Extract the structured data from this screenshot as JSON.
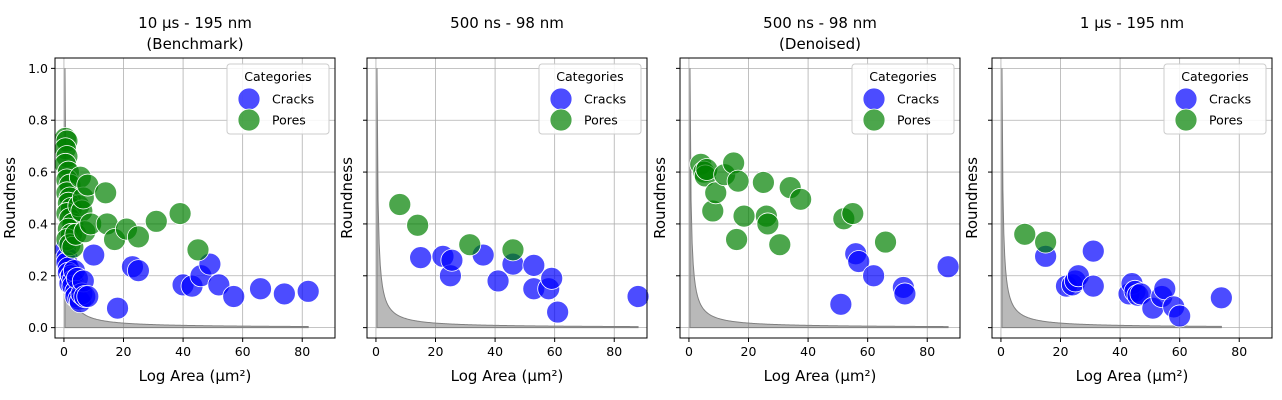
{
  "chart_data": [
    {
      "type": "scatter",
      "title": [
        "10 μs - 195 nm",
        "(Benchmark)"
      ],
      "xlabel": "Log Area (μm²)",
      "ylabel": "Roundness",
      "xlim": [
        -3,
        91
      ],
      "ylim": [
        -0.04,
        1.04
      ],
      "xticks": [
        0,
        20,
        40,
        60,
        80
      ],
      "yticks": [
        0.0,
        0.2,
        0.4,
        0.6,
        0.8,
        1.0
      ],
      "ytick_labels_visible": true,
      "grid": true,
      "legend": {
        "title": "Categories",
        "position": "top-right",
        "entries": [
          "Cracks",
          "Pores"
        ]
      },
      "curve_xmax": 82,
      "series": [
        {
          "name": "Cracks",
          "color": "#0000ff",
          "points": [
            [
              0.5,
              0.3
            ],
            [
              1,
              0.27
            ],
            [
              1,
              0.25
            ],
            [
              1.5,
              0.23
            ],
            [
              1.5,
              0.21
            ],
            [
              2,
              0.19
            ],
            [
              2,
              0.17
            ],
            [
              2.5,
              0.2
            ],
            [
              3,
              0.18
            ],
            [
              3,
              0.16
            ],
            [
              3.5,
              0.22
            ],
            [
              4,
              0.14
            ],
            [
              4,
              0.12
            ],
            [
              4.5,
              0.19
            ],
            [
              5,
              0.11
            ],
            [
              5.5,
              0.1
            ],
            [
              6,
              0.13
            ],
            [
              6.5,
              0.18
            ],
            [
              7,
              0.12
            ],
            [
              8,
              0.12
            ],
            [
              10,
              0.28
            ],
            [
              18,
              0.075
            ],
            [
              23,
              0.235
            ],
            [
              25,
              0.22
            ],
            [
              40,
              0.165
            ],
            [
              43,
              0.16
            ],
            [
              46,
              0.2
            ],
            [
              49,
              0.245
            ],
            [
              52,
              0.165
            ],
            [
              57,
              0.12
            ],
            [
              66,
              0.15
            ],
            [
              74,
              0.13
            ],
            [
              82,
              0.14
            ]
          ]
        },
        {
          "name": "Pores",
          "color": "#008000",
          "points": [
            [
              0.5,
              0.73
            ],
            [
              1,
              0.72
            ],
            [
              0.5,
              0.69
            ],
            [
              1,
              0.66
            ],
            [
              0.5,
              0.63
            ],
            [
              1.5,
              0.6
            ],
            [
              1,
              0.57
            ],
            [
              2,
              0.55
            ],
            [
              1,
              0.52
            ],
            [
              2,
              0.5
            ],
            [
              1.5,
              0.48
            ],
            [
              2.5,
              0.46
            ],
            [
              1,
              0.44
            ],
            [
              2,
              0.42
            ],
            [
              3,
              0.4
            ],
            [
              1.5,
              0.38
            ],
            [
              2.5,
              0.36
            ],
            [
              1,
              0.34
            ],
            [
              2,
              0.32
            ],
            [
              3,
              0.31
            ],
            [
              4,
              0.36
            ],
            [
              5,
              0.47
            ],
            [
              5.5,
              0.58
            ],
            [
              6,
              0.45
            ],
            [
              6.5,
              0.5
            ],
            [
              7,
              0.37
            ],
            [
              8,
              0.55
            ],
            [
              9,
              0.4
            ],
            [
              14,
              0.52
            ],
            [
              14.5,
              0.4
            ],
            [
              17,
              0.34
            ],
            [
              21,
              0.38
            ],
            [
              25,
              0.35
            ],
            [
              31,
              0.41
            ],
            [
              39,
              0.44
            ],
            [
              45,
              0.3
            ]
          ]
        }
      ]
    },
    {
      "type": "scatter",
      "title": [
        "500 ns - 98 nm"
      ],
      "xlabel": "Log Area (μm²)",
      "ylabel": "Roundness",
      "xlim": [
        -3,
        91
      ],
      "ylim": [
        -0.04,
        1.04
      ],
      "xticks": [
        0,
        20,
        40,
        60,
        80
      ],
      "yticks": [
        0.0,
        0.2,
        0.4,
        0.6,
        0.8,
        1.0
      ],
      "ytick_labels_visible": false,
      "grid": true,
      "legend": {
        "title": "Categories",
        "position": "top-right",
        "entries": [
          "Cracks",
          "Pores"
        ]
      },
      "curve_xmax": 88,
      "series": [
        {
          "name": "Cracks",
          "color": "#0000ff",
          "points": [
            [
              15,
              0.27
            ],
            [
              22.5,
              0.275
            ],
            [
              25,
              0.2
            ],
            [
              25.5,
              0.26
            ],
            [
              36,
              0.28
            ],
            [
              41,
              0.18
            ],
            [
              46,
              0.245
            ],
            [
              53,
              0.24
            ],
            [
              53,
              0.15
            ],
            [
              58,
              0.15
            ],
            [
              59,
              0.19
            ],
            [
              61,
              0.06
            ],
            [
              88,
              0.12
            ]
          ]
        },
        {
          "name": "Pores",
          "color": "#008000",
          "points": [
            [
              8,
              0.475
            ],
            [
              14,
              0.395
            ],
            [
              31.5,
              0.32
            ],
            [
              46,
              0.3
            ]
          ]
        }
      ]
    },
    {
      "type": "scatter",
      "title": [
        "500 ns - 98 nm",
        "(Denoised)"
      ],
      "xlabel": "Log Area (μm²)",
      "ylabel": "Roundness",
      "xlim": [
        -3,
        91
      ],
      "ylim": [
        -0.04,
        1.04
      ],
      "xticks": [
        0,
        20,
        40,
        60,
        80
      ],
      "yticks": [
        0.0,
        0.2,
        0.4,
        0.6,
        0.8,
        1.0
      ],
      "ytick_labels_visible": false,
      "grid": true,
      "legend": {
        "title": "Categories",
        "position": "top-right",
        "entries": [
          "Cracks",
          "Pores"
        ]
      },
      "curve_xmax": 87,
      "series": [
        {
          "name": "Cracks",
          "color": "#0000ff",
          "points": [
            [
              51,
              0.09
            ],
            [
              56,
              0.285
            ],
            [
              57,
              0.255
            ],
            [
              62,
              0.2
            ],
            [
              72,
              0.155
            ],
            [
              72.5,
              0.13
            ],
            [
              87,
              0.235
            ]
          ]
        },
        {
          "name": "Pores",
          "color": "#008000",
          "points": [
            [
              4,
              0.63
            ],
            [
              5,
              0.6
            ],
            [
              5.5,
              0.585
            ],
            [
              6,
              0.61
            ],
            [
              8,
              0.45
            ],
            [
              9,
              0.52
            ],
            [
              12,
              0.59
            ],
            [
              15,
              0.635
            ],
            [
              16,
              0.34
            ],
            [
              16.5,
              0.565
            ],
            [
              18.5,
              0.43
            ],
            [
              25,
              0.56
            ],
            [
              26,
              0.43
            ],
            [
              26.5,
              0.4
            ],
            [
              30.5,
              0.32
            ],
            [
              34,
              0.54
            ],
            [
              37.5,
              0.495
            ],
            [
              52,
              0.42
            ],
            [
              55,
              0.44
            ],
            [
              66,
              0.33
            ]
          ]
        }
      ]
    },
    {
      "type": "scatter",
      "title": [
        "1 μs - 195 nm"
      ],
      "xlabel": "Log Area (μm²)",
      "ylabel": "Roundness",
      "xlim": [
        -3,
        91
      ],
      "ylim": [
        -0.04,
        1.04
      ],
      "xticks": [
        0,
        20,
        40,
        60,
        80
      ],
      "yticks": [
        0.0,
        0.2,
        0.4,
        0.6,
        0.8,
        1.0
      ],
      "ytick_labels_visible": false,
      "grid": true,
      "legend": {
        "title": "Categories",
        "position": "top-right",
        "entries": [
          "Cracks",
          "Pores"
        ]
      },
      "curve_xmax": 74,
      "series": [
        {
          "name": "Cracks",
          "color": "#0000ff",
          "points": [
            [
              15,
              0.275
            ],
            [
              22,
              0.16
            ],
            [
              24,
              0.165
            ],
            [
              25,
              0.18
            ],
            [
              26,
              0.2
            ],
            [
              31,
              0.16
            ],
            [
              31,
              0.295
            ],
            [
              43,
              0.13
            ],
            [
              44,
              0.17
            ],
            [
              45,
              0.14
            ],
            [
              46,
              0.125
            ],
            [
              47,
              0.13
            ],
            [
              51,
              0.075
            ],
            [
              54,
              0.12
            ],
            [
              55,
              0.15
            ],
            [
              58,
              0.08
            ],
            [
              60,
              0.045
            ],
            [
              74,
              0.115
            ]
          ]
        },
        {
          "name": "Pores",
          "color": "#008000",
          "points": [
            [
              8,
              0.36
            ],
            [
              15,
              0.33
            ]
          ]
        }
      ]
    }
  ]
}
